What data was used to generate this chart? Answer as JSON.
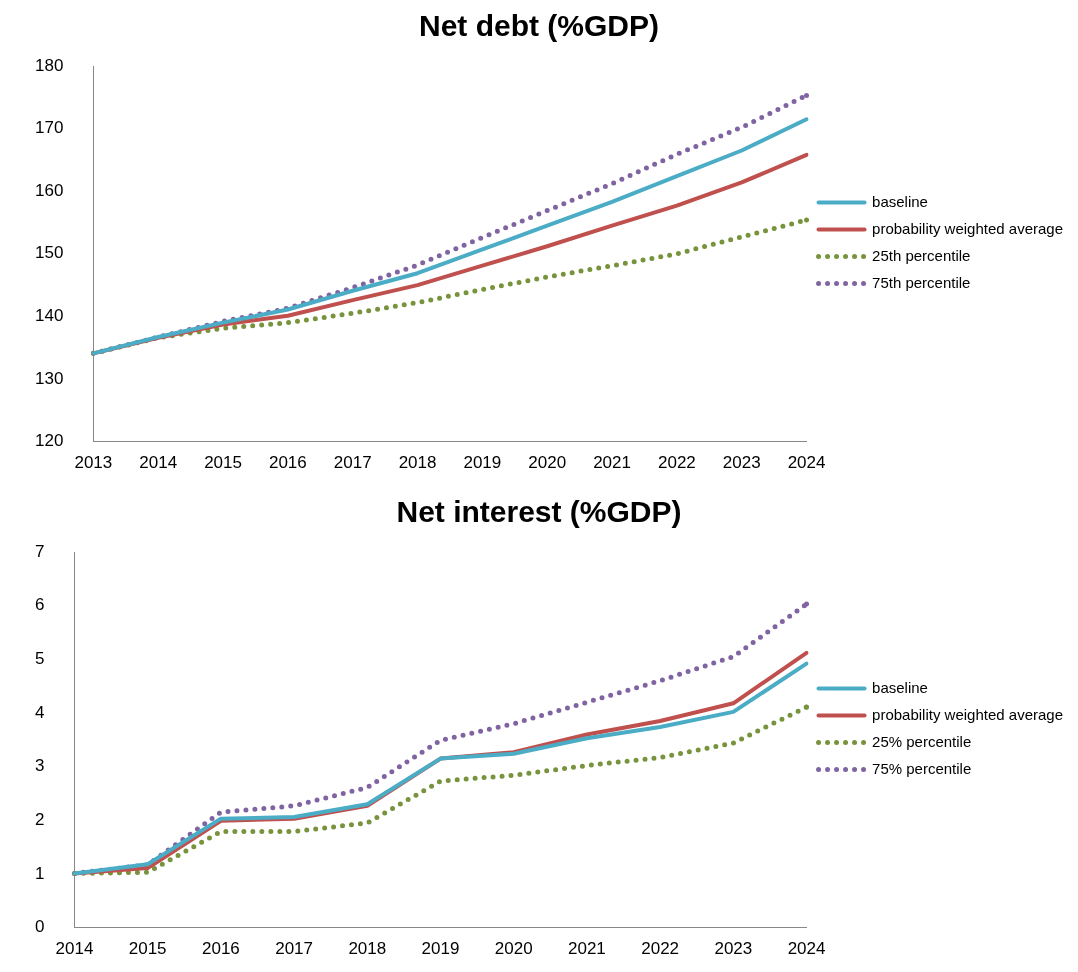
{
  "chart_data": [
    {
      "type": "line",
      "title": "Net debt (%GDP)",
      "categories": [
        "2013",
        "2014",
        "2015",
        "2016",
        "2017",
        "2018",
        "2019",
        "2020",
        "2021",
        "2022",
        "2023",
        "2024"
      ],
      "ylim": [
        120,
        180
      ],
      "yticks": [
        120,
        130,
        140,
        150,
        160,
        170,
        180
      ],
      "grid": false,
      "legend": "right",
      "marker": "none",
      "series": [
        {
          "name": "baseline",
          "color": "#4bacc6",
          "line_style": "solid",
          "values": [
            134.1,
            136.7,
            139.0,
            141.1,
            144.1,
            146.9,
            150.7,
            154.5,
            158.3,
            162.4,
            166.5,
            171.5
          ]
        },
        {
          "name": "probability weighted average",
          "color": "#c0504d",
          "line_style": "solid",
          "values": [
            134.1,
            136.6,
            138.7,
            140.1,
            142.6,
            145.0,
            148.1,
            151.2,
            154.5,
            157.7,
            161.4,
            165.8
          ]
        },
        {
          "name": "25th percentile",
          "color": "#77933c",
          "line_style": "dotted",
          "values": [
            134.1,
            136.6,
            138.1,
            139.0,
            140.5,
            142.2,
            144.3,
            146.3,
            148.1,
            150.0,
            152.7,
            155.4
          ]
        },
        {
          "name": "75th percentile",
          "color": "#8064a2",
          "line_style": "dotted",
          "values": [
            134.1,
            136.7,
            139.2,
            141.3,
            144.6,
            148.2,
            152.6,
            156.9,
            161.2,
            165.9,
            170.2,
            175.3
          ]
        }
      ]
    },
    {
      "type": "line",
      "title": "Net interest (%GDP)",
      "categories": [
        "2014",
        "2015",
        "2016",
        "2017",
        "2018",
        "2019",
        "2020",
        "2021",
        "2022",
        "2023",
        "2024"
      ],
      "ylim": [
        0,
        7
      ],
      "yticks": [
        0,
        1,
        2,
        3,
        4,
        5,
        6,
        7
      ],
      "grid": false,
      "legend": "right",
      "marker": "none",
      "series": [
        {
          "name": "baseline",
          "color": "#4bacc6",
          "line_style": "solid",
          "values": [
            1.01,
            1.18,
            2.03,
            2.06,
            2.3,
            3.15,
            3.24,
            3.53,
            3.74,
            4.02,
            4.92
          ]
        },
        {
          "name": "probability weighted average",
          "color": "#c0504d",
          "line_style": "solid",
          "values": [
            1.01,
            1.11,
            1.99,
            2.03,
            2.27,
            3.15,
            3.27,
            3.6,
            3.85,
            4.18,
            5.12
          ]
        },
        {
          "name": "25% percentile",
          "color": "#77933c",
          "line_style": "dotted",
          "values": [
            1.01,
            1.03,
            1.79,
            1.79,
            1.95,
            2.73,
            2.84,
            3.02,
            3.17,
            3.44,
            4.11
          ]
        },
        {
          "name": "75% percentile",
          "color": "#8064a2",
          "line_style": "dotted",
          "values": [
            1.01,
            1.17,
            2.15,
            2.27,
            2.61,
            3.49,
            3.8,
            4.2,
            4.6,
            5.05,
            6.03
          ]
        }
      ]
    }
  ]
}
